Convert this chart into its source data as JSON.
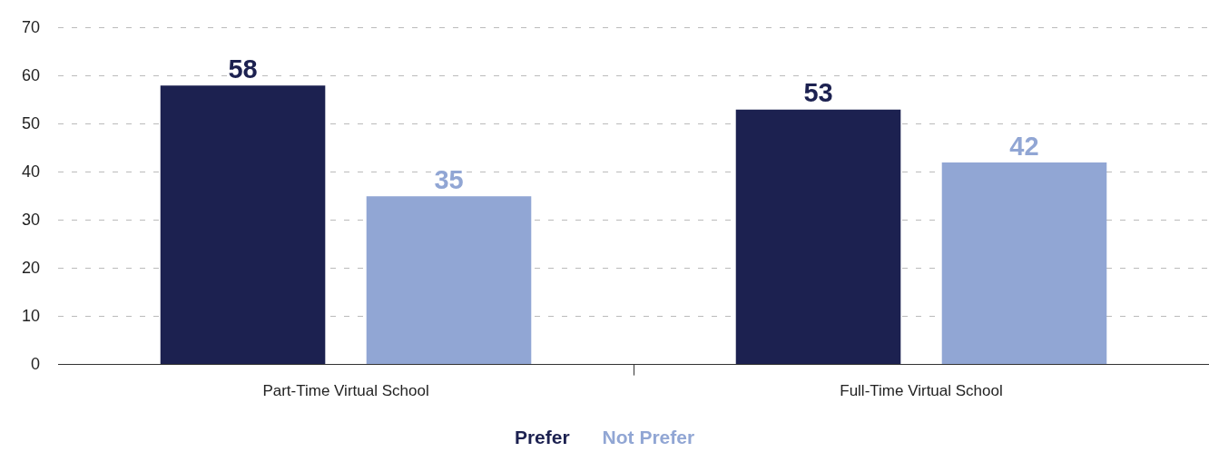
{
  "chart_data": {
    "type": "bar",
    "categories": [
      "Part-Time Virtual School",
      "Full-Time Virtual School"
    ],
    "series": [
      {
        "name": "Prefer",
        "color": "#1c2150",
        "values": [
          58,
          53
        ]
      },
      {
        "name": "Not Prefer",
        "color": "#91a6d4",
        "values": [
          35,
          42
        ]
      }
    ],
    "ylim": [
      0,
      70
    ],
    "yticks": [
      0,
      10,
      20,
      30,
      40,
      50,
      60,
      70
    ],
    "grid": "y",
    "legend": "bottom",
    "data_labels": true
  }
}
